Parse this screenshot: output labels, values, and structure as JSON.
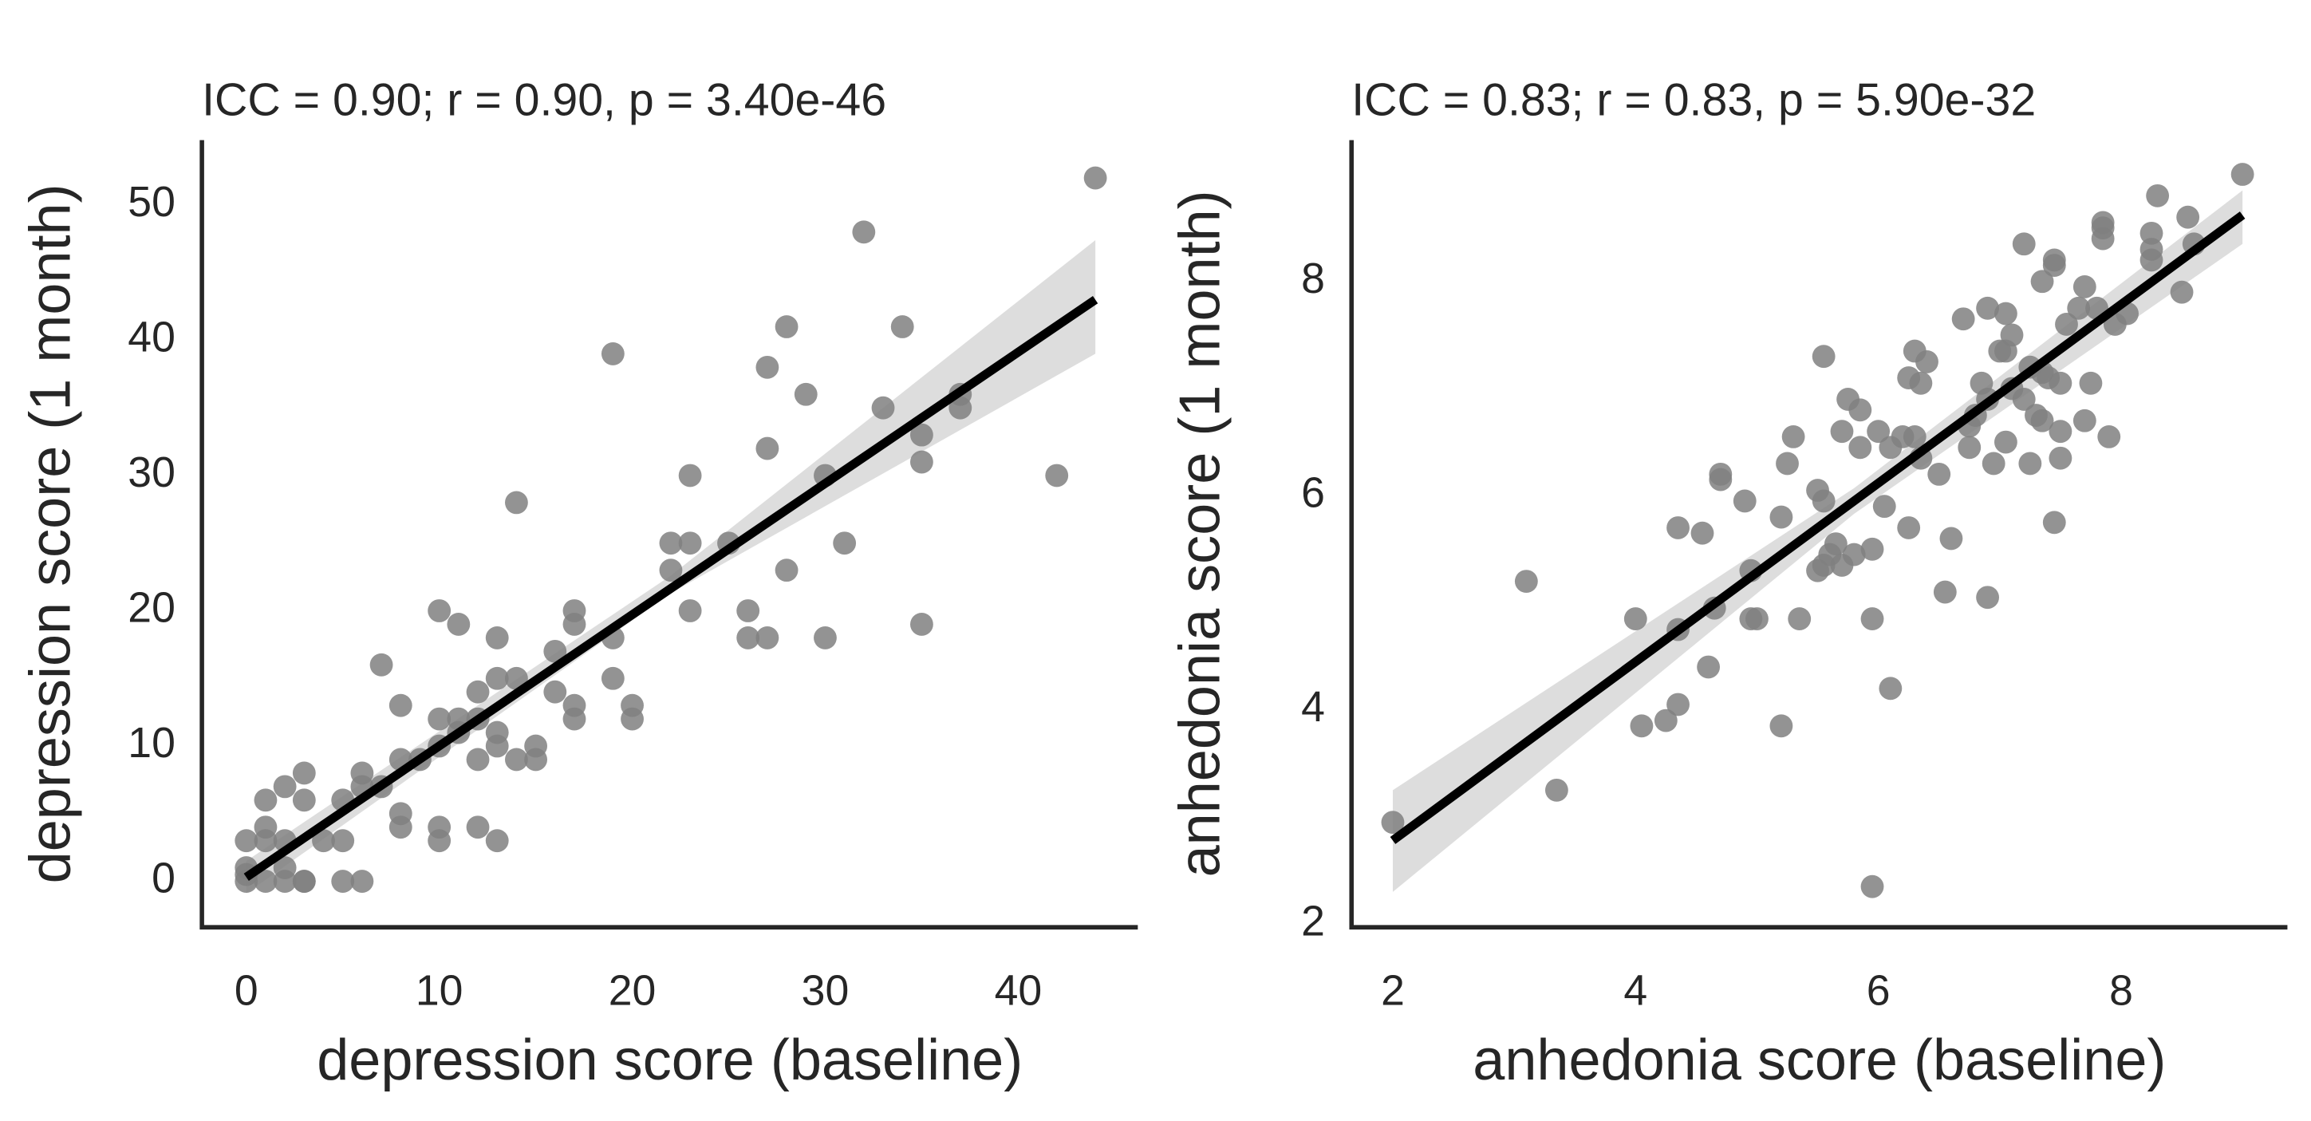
{
  "chart_data": [
    {
      "type": "scatter",
      "title": "ICC = 0.90; r = 0.90, p = 3.40e-46",
      "x_label": "depression score (baseline)",
      "y_label": "depression score (1 month)",
      "color": "#808080",
      "x": [
        44,
        32,
        19,
        28,
        34,
        27,
        29,
        37,
        37,
        33,
        35,
        27,
        35,
        30,
        42,
        23,
        14,
        25,
        31,
        22,
        23,
        22,
        28,
        10,
        17,
        23,
        26,
        11,
        17,
        35,
        19,
        13,
        26,
        27,
        30,
        16,
        7,
        13,
        14,
        19,
        12,
        16,
        8,
        17,
        20,
        20,
        17,
        10,
        11,
        12,
        11,
        13,
        10,
        13,
        15,
        8,
        9,
        12,
        14,
        15,
        3,
        6,
        6,
        7,
        2,
        1,
        3,
        5,
        8,
        1,
        8,
        10,
        12,
        0,
        1,
        2,
        4,
        5,
        10,
        13,
        0,
        2,
        0,
        1,
        2,
        3,
        5,
        6,
        0,
        3
      ],
      "y": [
        52,
        48,
        39,
        41,
        41,
        38,
        36,
        36,
        35,
        35,
        33,
        32,
        31,
        30,
        30,
        30,
        28,
        25,
        25,
        25,
        25,
        23,
        23,
        20,
        20,
        20,
        20,
        19,
        19,
        19,
        18,
        18,
        18,
        18,
        18,
        17,
        16,
        15,
        15,
        15,
        14,
        14,
        13,
        13,
        13,
        12,
        12,
        12,
        12,
        12,
        11,
        11,
        10,
        10,
        10,
        9,
        9,
        9,
        9,
        9,
        8,
        8,
        7,
        7,
        7,
        6,
        6,
        6,
        5,
        4,
        4,
        4,
        4,
        3,
        3,
        3,
        3,
        3,
        3,
        3,
        1,
        1,
        0,
        0,
        0,
        0,
        0,
        0,
        0.5,
        0
      ],
      "regression": {
        "x": [
          0,
          44
        ],
        "y": [
          0.3,
          43
        ],
        "color": "#000000"
      },
      "ci": {
        "x": [
          0,
          22,
          44
        ],
        "lower": [
          -0.9,
          21.3,
          39
        ],
        "upper": [
          1.5,
          22.6,
          47.4
        ],
        "color": "#d9d9d9"
      },
      "xlim": [
        -2.3,
        46.2
      ],
      "ylim": [
        -3.4,
        54.8
      ],
      "xticks": [
        0,
        10,
        20,
        30,
        40
      ],
      "yticks": [
        0,
        10,
        20,
        30,
        40,
        50
      ],
      "grid": false
    },
    {
      "type": "scatter",
      "title": "ICC = 0.83; r = 0.83, p = 5.90e-32",
      "x_label": "anhedonia score (baseline)",
      "y_label": "anhedonia score (1 month)",
      "color": "#808080",
      "x": [
        9,
        8.3,
        8.55,
        7.85,
        7.85,
        8.25,
        7.85,
        8.6,
        7.2,
        8.25,
        7.45,
        8.25,
        7.45,
        7.35,
        7.7,
        8.5,
        7.65,
        7.8,
        6.9,
        7.05,
        8.05,
        6.7,
        7.55,
        7.95,
        7.1,
        7.05,
        7.0,
        6.3,
        6.4,
        5.55,
        7.25,
        7.35,
        7.4,
        6.25,
        6.35,
        6.85,
        7.5,
        7.75,
        7.1,
        6.9,
        7.2,
        5.75,
        5.85,
        6.8,
        7.3,
        7.35,
        7.7,
        6.75,
        5.7,
        7.5,
        6.2,
        6.3,
        6.0,
        5.3,
        7.05,
        7.9,
        6.1,
        5.85,
        6.75,
        6.35,
        5.25,
        6.95,
        7.25,
        7.5,
        4.7,
        4.7,
        6.5,
        5.5,
        4.9,
        5.55,
        6.05,
        5.2,
        6.25,
        4.35,
        4.55,
        7.45,
        6.6,
        5.65,
        5.6,
        5.8,
        5.95,
        5.55,
        5.7,
        4.95,
        5.5,
        3.1,
        6.55,
        6.9,
        4.65,
        4.0,
        4.95,
        5.0,
        5.35,
        5.95,
        4.35,
        4.6,
        6.1,
        4.35,
        4.25,
        4.05,
        5.2,
        3.35,
        2.0,
        5.95
      ],
      "y": [
        9,
        8.8,
        8.6,
        8.55,
        8.5,
        8.45,
        8.4,
        8.35,
        8.35,
        8.3,
        8.2,
        8.2,
        8.15,
        8.0,
        7.95,
        7.9,
        7.75,
        7.75,
        7.75,
        7.7,
        7.7,
        7.65,
        7.6,
        7.6,
        7.5,
        7.35,
        7.35,
        7.35,
        7.25,
        7.3,
        7.2,
        7.15,
        7.1,
        7.1,
        7.05,
        7.05,
        7.05,
        7.05,
        7.0,
        6.9,
        6.9,
        6.9,
        6.8,
        6.75,
        6.75,
        6.7,
        6.7,
        6.65,
        6.6,
        6.6,
        6.55,
        6.55,
        6.6,
        6.55,
        6.5,
        6.55,
        6.45,
        6.45,
        6.45,
        6.35,
        6.3,
        6.3,
        6.3,
        6.35,
        6.2,
        6.15,
        6.2,
        6.05,
        5.95,
        5.95,
        5.9,
        5.8,
        5.7,
        5.7,
        5.65,
        5.75,
        5.6,
        5.55,
        5.45,
        5.45,
        5.5,
        5.35,
        5.35,
        5.3,
        5.3,
        5.2,
        5.1,
        5.05,
        4.95,
        4.85,
        4.85,
        4.85,
        4.85,
        4.85,
        4.75,
        4.4,
        4.2,
        4.05,
        3.9,
        3.85,
        3.85,
        3.25,
        2.95,
        2.35
      ],
      "regression": {
        "x": [
          2,
          9
        ],
        "y": [
          2.78,
          8.62
        ],
        "color": "#000000"
      },
      "ci": {
        "x": [
          2,
          5.8,
          9
        ],
        "lower": [
          2.3,
          5.83,
          8.35
        ],
        "upper": [
          3.25,
          6.07,
          8.85
        ],
        "color": "#d9d9d9"
      },
      "xlim": [
        1.66,
        9.37
      ],
      "ylim": [
        1.97,
        9.32
      ],
      "xticks": [
        2,
        4,
        6,
        8
      ],
      "yticks": [
        2,
        4,
        6,
        8
      ],
      "grid": false
    }
  ]
}
